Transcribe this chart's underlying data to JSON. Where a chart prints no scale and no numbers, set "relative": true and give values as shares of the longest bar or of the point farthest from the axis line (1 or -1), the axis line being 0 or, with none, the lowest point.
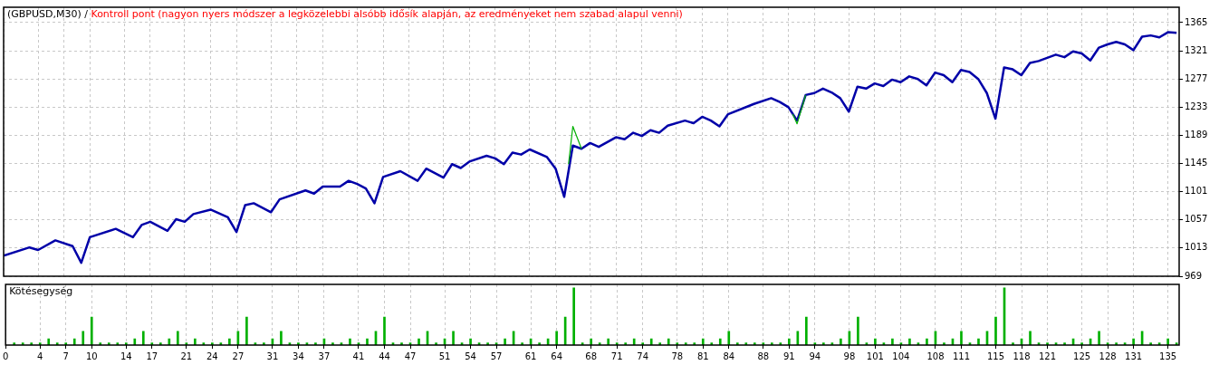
{
  "chart_data": [
    {
      "type": "line",
      "title": "(GBPUSD,M30) /",
      "subtitle": "Kontroll pont (nagyon nyers módszer a legközelebbi alsóbb idősík alapján, az eredményeket nem szabad alapul venni)",
      "xlim": [
        0,
        136.3
      ],
      "xticks": [
        0,
        4,
        7,
        10,
        14,
        17,
        21,
        24,
        27,
        31,
        34,
        37,
        41,
        44,
        47,
        51,
        54,
        57,
        61,
        64,
        68,
        71,
        74,
        78,
        81,
        84,
        88,
        91,
        94,
        98,
        101,
        104,
        108,
        111,
        115,
        118,
        121,
        125,
        128,
        131,
        135
      ],
      "ylim": [
        969,
        1389
      ],
      "yticks": [
        969,
        1013,
        1057,
        1101,
        1145,
        1189,
        1233,
        1277,
        1321,
        1365
      ],
      "grid": true,
      "tick_labels": "y",
      "series": [
        {
          "color": "#00b000",
          "x": [
            65.5,
            66,
            67,
            80,
            91.5,
            92,
            93
          ],
          "values": [
            1144,
            1203,
            1168,
            null,
            1222,
            1207,
            1252
          ]
        },
        {
          "color": "#0000a8",
          "x": [
            0,
            3,
            4,
            6,
            8,
            9,
            10,
            13,
            15,
            16,
            17,
            19,
            20,
            21,
            22,
            24,
            26,
            27,
            28,
            29,
            31,
            32,
            35,
            36,
            37,
            39,
            40,
            41,
            42,
            43,
            44,
            46,
            48,
            49,
            51,
            52,
            53,
            54,
            56,
            57,
            58,
            59,
            60,
            61,
            63,
            64,
            65,
            66,
            67,
            68,
            69,
            71,
            72,
            73,
            74,
            75,
            76,
            77,
            79,
            80,
            81,
            82,
            83,
            84,
            87,
            89,
            90,
            91,
            92,
            93,
            94,
            95,
            96,
            97,
            98,
            99,
            100,
            101,
            102,
            103,
            104,
            105,
            106,
            107,
            108,
            109,
            110,
            111,
            112,
            113,
            114,
            115,
            116,
            117,
            118,
            119,
            120,
            121,
            122,
            123,
            124,
            125,
            126,
            127,
            128,
            129,
            130,
            131,
            132,
            133,
            134,
            135,
            136
          ],
          "values": [
            1001,
            1014,
            1010,
            1025,
            1016,
            990,
            1030,
            1043,
            1030,
            1049,
            1054,
            1040,
            1058,
            1054,
            1066,
            1073,
            1061,
            1038,
            1080,
            1083,
            1069,
            1089,
            1103,
            1098,
            1109,
            1109,
            1118,
            1113,
            1106,
            1083,
            1124,
            1133,
            1118,
            1137,
            1123,
            1144,
            1138,
            1148,
            1157,
            1153,
            1144,
            1162,
            1159,
            1167,
            1155,
            1137,
            1093,
            1173,
            1168,
            1177,
            1171,
            1186,
            1183,
            1193,
            1188,
            1197,
            1193,
            1204,
            1212,
            1208,
            1218,
            1212,
            1203,
            1222,
            1238,
            1247,
            1241,
            1233,
            1212,
            1252,
            1255,
            1262,
            1256,
            1247,
            1226,
            1265,
            1262,
            1270,
            1266,
            1276,
            1272,
            1281,
            1277,
            1267,
            1287,
            1283,
            1272,
            1291,
            1288,
            1277,
            1255,
            1215,
            1295,
            1292,
            1283,
            1302,
            1305,
            1310,
            1315,
            1311,
            1320,
            1317,
            1306,
            1326,
            1331,
            1335,
            1331,
            1322,
            1343,
            1345,
            1342,
            1350,
            1349
          ]
        }
      ]
    },
    {
      "type": "bar",
      "title": "Kötésegység",
      "relative": true,
      "xlim": [
        0,
        136.3
      ],
      "xticks": [
        0,
        4,
        7,
        10,
        14,
        17,
        21,
        24,
        27,
        31,
        34,
        37,
        41,
        44,
        47,
        51,
        54,
        57,
        61,
        64,
        68,
        71,
        74,
        78,
        81,
        84,
        88,
        91,
        94,
        98,
        101,
        104,
        108,
        111,
        115,
        118,
        121,
        125,
        128,
        131,
        135
      ],
      "grid": "x",
      "tick_labels": "x",
      "series": [
        {
          "color": "#00b000",
          "x": [
            1,
            2,
            3,
            4,
            5,
            6,
            7,
            8,
            9,
            10,
            11,
            12,
            13,
            14,
            15,
            16,
            17,
            18,
            19,
            20,
            21,
            22,
            23,
            24,
            25,
            26,
            27,
            28,
            29,
            30,
            31,
            32,
            33,
            34,
            35,
            36,
            37,
            38,
            39,
            40,
            41,
            42,
            43,
            44,
            45,
            46,
            47,
            48,
            49,
            50,
            51,
            52,
            53,
            54,
            55,
            56,
            57,
            58,
            59,
            60,
            61,
            62,
            63,
            64,
            65,
            66,
            67,
            68,
            69,
            70,
            71,
            72,
            73,
            74,
            75,
            76,
            77,
            78,
            79,
            80,
            81,
            82,
            83,
            84,
            85,
            86,
            87,
            88,
            89,
            90,
            91,
            92,
            93,
            94,
            95,
            96,
            97,
            98,
            99,
            100,
            101,
            102,
            103,
            104,
            105,
            106,
            107,
            108,
            109,
            110,
            111,
            112,
            113,
            114,
            115,
            116,
            117,
            118,
            119,
            120,
            121,
            122,
            123,
            124,
            125,
            126,
            127,
            128,
            129,
            130,
            131,
            132,
            133,
            134,
            135,
            136
          ],
          "values": [
            0.04,
            0.04,
            0.04,
            0.04,
            0.11,
            0.04,
            0.04,
            0.11,
            0.24,
            0.49,
            0.04,
            0.04,
            0.04,
            0.04,
            0.11,
            0.24,
            0.04,
            0.04,
            0.11,
            0.24,
            0.04,
            0.11,
            0.04,
            0.04,
            0.04,
            0.11,
            0.24,
            0.49,
            0.04,
            0.04,
            0.11,
            0.24,
            0.04,
            0.04,
            0.04,
            0.04,
            0.11,
            0.04,
            0.04,
            0.11,
            0.04,
            0.11,
            0.24,
            0.49,
            0.04,
            0.04,
            0.04,
            0.11,
            0.24,
            0.04,
            0.11,
            0.24,
            0.04,
            0.11,
            0.04,
            0.04,
            0.04,
            0.11,
            0.24,
            0.04,
            0.11,
            0.04,
            0.11,
            0.24,
            0.49,
            1,
            0.04,
            0.11,
            0.04,
            0.11,
            0.04,
            0.04,
            0.11,
            0.04,
            0.11,
            0.04,
            0.11,
            0.04,
            0.04,
            0.04,
            0.11,
            0.04,
            0.11,
            0.24,
            0.04,
            0.04,
            0.04,
            0.04,
            0.04,
            0.04,
            0.11,
            0.24,
            0.49,
            0.04,
            0.04,
            0.04,
            0.11,
            0.24,
            0.49,
            0.04,
            0.11,
            0.04,
            0.11,
            0.04,
            0.11,
            0.04,
            0.11,
            0.24,
            0.04,
            0.11,
            0.24,
            0.04,
            0.11,
            0.24,
            0.49,
            1,
            0.04,
            0.11,
            0.24,
            0.04,
            0.04,
            0.04,
            0.04,
            0.11,
            0.04,
            0.11,
            0.24,
            0.04,
            0.04,
            0.04,
            0.11,
            0.24,
            0.04,
            0.04,
            0.11,
            0.04
          ]
        }
      ]
    }
  ]
}
